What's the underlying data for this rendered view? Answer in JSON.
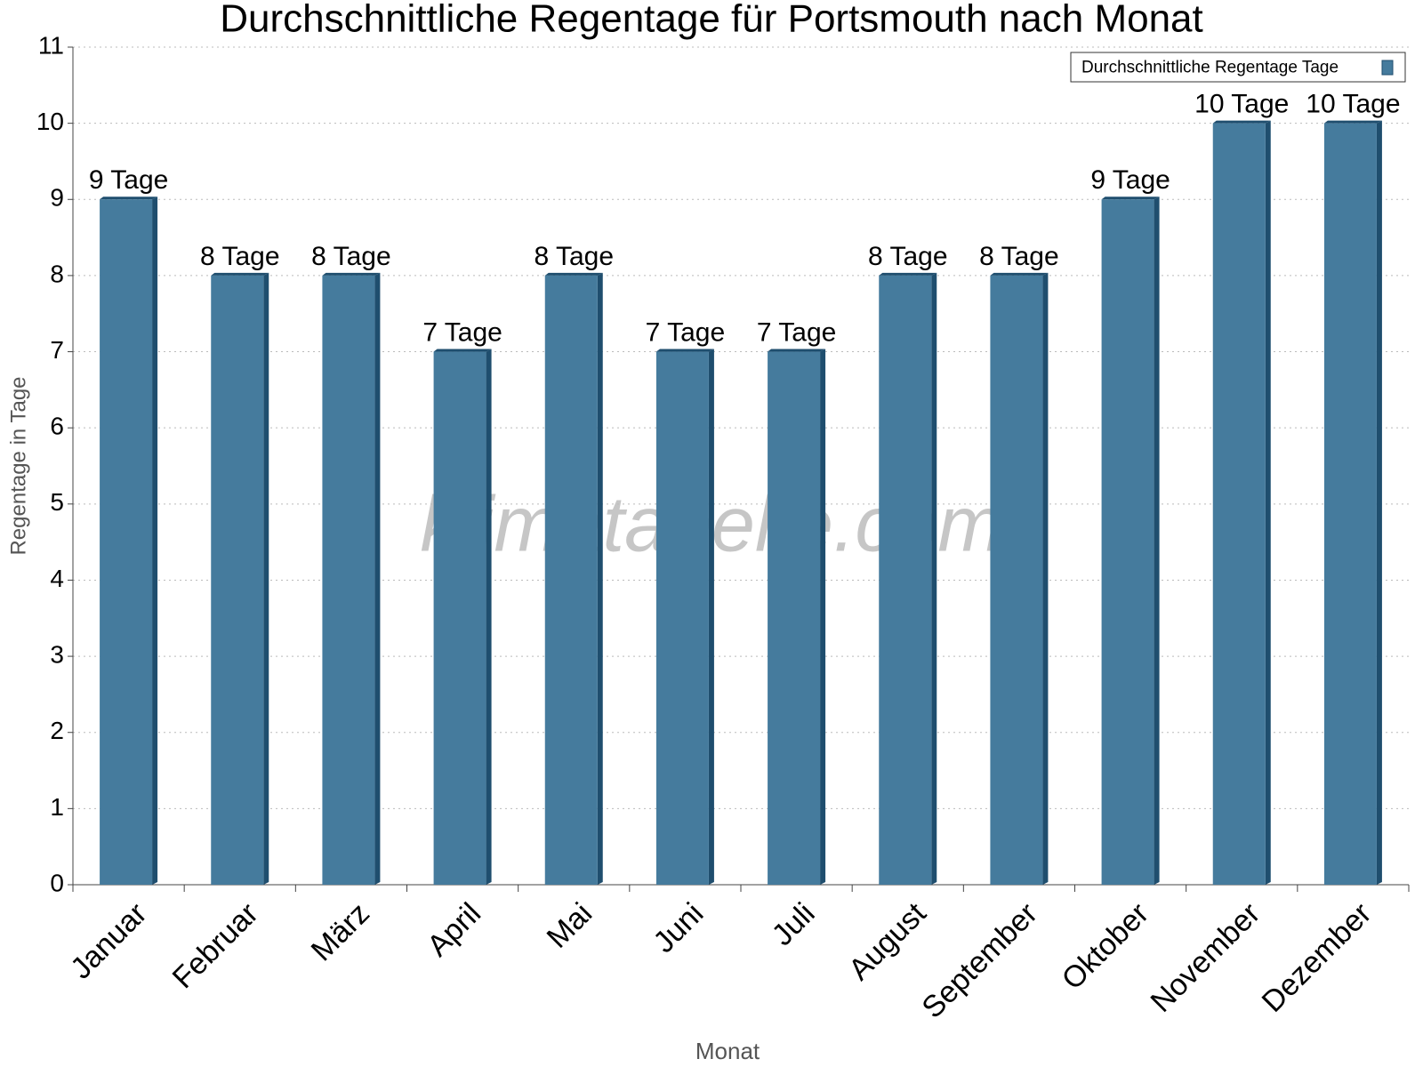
{
  "chart_data": {
    "type": "bar",
    "title": "Durchschnittliche Regentage für Portsmouth nach Monat",
    "x_label": "Monat",
    "y_label": "Regentage in Tage",
    "watermark": "klimatabelle.com",
    "categories": [
      "Januar",
      "Februar",
      "März",
      "April",
      "Mai",
      "Juni",
      "Juli",
      "August",
      "September",
      "Oktober",
      "November",
      "Dezember"
    ],
    "series": [
      {
        "name": "Durchschnittliche Regentage Tage",
        "color": "#457b9d",
        "values": [
          9,
          8,
          8,
          7,
          8,
          7,
          7,
          8,
          8,
          9,
          10,
          10
        ],
        "value_labels": [
          "9 Tage",
          "8 Tage",
          "8 Tage",
          "7 Tage",
          "8 Tage",
          "7 Tage",
          "7 Tage",
          "8 Tage",
          "8 Tage",
          "9 Tage",
          "10 Tage",
          "10 Tage"
        ]
      }
    ],
    "ylim": [
      0,
      11
    ],
    "yticks": [
      0,
      1,
      2,
      3,
      4,
      5,
      6,
      7,
      8,
      9,
      10,
      11
    ],
    "grid": true,
    "legend": "top-right"
  }
}
